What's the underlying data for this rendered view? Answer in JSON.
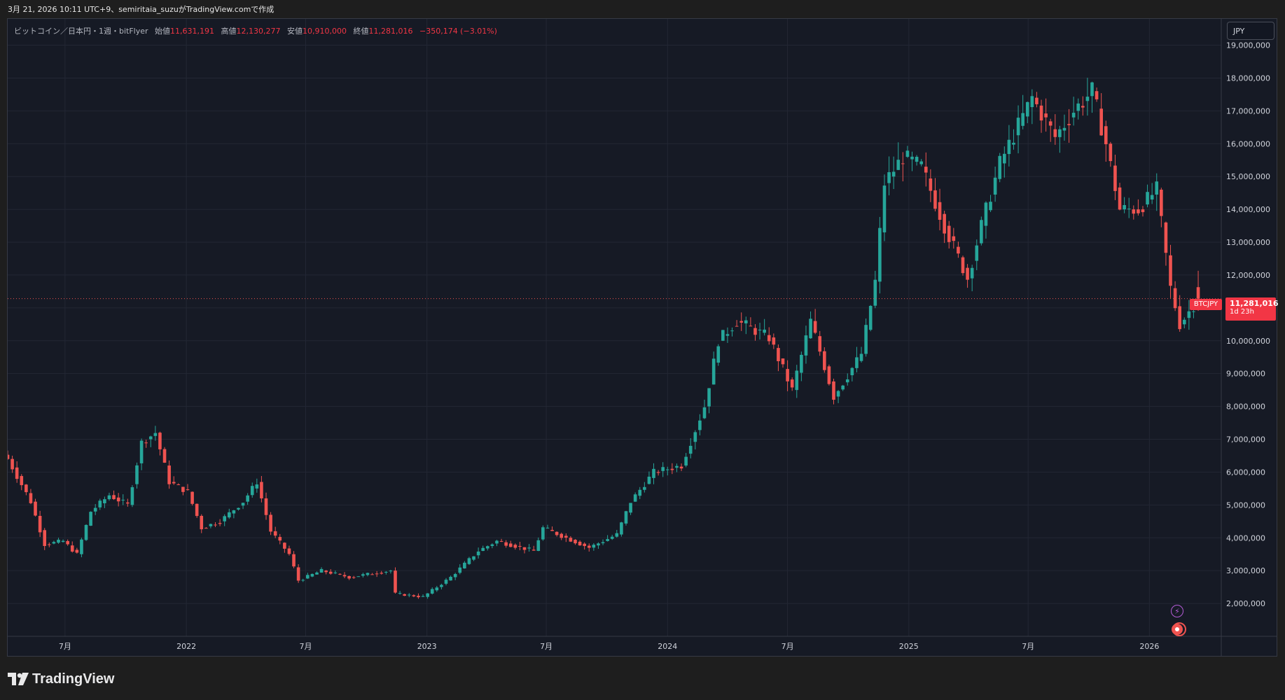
{
  "caption": "3月 21, 2026 10:11 UTC+9、semiritaia_suzuがTradingView.comで作成",
  "legend": {
    "symbol": "ビットコイン／日本円・1週・bitFlyer",
    "open_label": "始値",
    "open_value": "11,631,191",
    "high_label": "高値",
    "high_value": "12,130,277",
    "low_label": "安値",
    "low_value": "10,910,000",
    "close_label": "終値",
    "close_value": "11,281,016",
    "change": "−350,174 (−3.01%)"
  },
  "currency_button": "JPY",
  "price_tag": {
    "symbol": "BTCJPY",
    "price": "11,281,016",
    "countdown": "1d 23h"
  },
  "brand": "TradingView",
  "colors": {
    "up": "#26a69a",
    "down": "#ef5350",
    "background": "#161a25",
    "grid": "#232734",
    "label": "#d1d4dc"
  },
  "icons": [
    "bolt-icon",
    "target-icon",
    "tradingview-logo-icon"
  ],
  "chart_data": {
    "type": "candlestick",
    "interval": "1W",
    "x_range": [
      "2021-04-05",
      "2026-04-20"
    ],
    "y_range": [
      1000000,
      19800000
    ],
    "y_ticks": [
      2000000,
      3000000,
      4000000,
      5000000,
      6000000,
      7000000,
      8000000,
      9000000,
      10000000,
      11000000,
      12000000,
      13000000,
      14000000,
      15000000,
      16000000,
      17000000,
      18000000,
      19000000
    ],
    "y_tick_labels": [
      "2,000,000",
      "3,000,000",
      "4,000,000",
      "5,000,000",
      "6,000,000",
      "7,000,000",
      "8,000,000",
      "9,000,000",
      "10,000,000",
      "11,000,000",
      "12,000,000",
      "13,000,000",
      "14,000,000",
      "15,000,000",
      "16,000,000",
      "17,000,000",
      "18,000,000",
      "19,000,000"
    ],
    "x_ticks": [
      {
        "date": "2021-07-01",
        "label": "7月"
      },
      {
        "date": "2022-01-01",
        "label": "2022"
      },
      {
        "date": "2022-07-01",
        "label": "7月"
      },
      {
        "date": "2023-01-01",
        "label": "2023"
      },
      {
        "date": "2023-07-01",
        "label": "7月"
      },
      {
        "date": "2024-01-01",
        "label": "2024"
      },
      {
        "date": "2024-07-01",
        "label": "7月"
      },
      {
        "date": "2025-01-01",
        "label": "2025"
      },
      {
        "date": "2025-07-01",
        "label": "7月"
      },
      {
        "date": "2026-01-01",
        "label": "2026"
      }
    ],
    "last_price": 11281016,
    "weekly_closes": [
      [
        "2021-04-05",
        6400000
      ],
      [
        "2021-05-10",
        5100000
      ],
      [
        "2021-05-31",
        3800000
      ],
      [
        "2021-06-28",
        3900000
      ],
      [
        "2021-07-19",
        3500000
      ],
      [
        "2021-08-09",
        4800000
      ],
      [
        "2021-09-06",
        5300000
      ],
      [
        "2021-10-04",
        5000000
      ],
      [
        "2021-10-25",
        6900000
      ],
      [
        "2021-11-15",
        7200000
      ],
      [
        "2021-12-06",
        5700000
      ],
      [
        "2022-01-03",
        5400000
      ],
      [
        "2022-01-24",
        4300000
      ],
      [
        "2022-02-21",
        4500000
      ],
      [
        "2022-03-28",
        5100000
      ],
      [
        "2022-04-18",
        5700000
      ],
      [
        "2022-05-09",
        4200000
      ],
      [
        "2022-06-06",
        3500000
      ],
      [
        "2022-06-20",
        2700000
      ],
      [
        "2022-07-25",
        3000000
      ],
      [
        "2022-09-05",
        2800000
      ],
      [
        "2022-11-07",
        3000000
      ],
      [
        "2022-11-14",
        2300000
      ],
      [
        "2022-12-26",
        2200000
      ],
      [
        "2023-02-06",
        2800000
      ],
      [
        "2023-03-20",
        3600000
      ],
      [
        "2023-04-17",
        3900000
      ],
      [
        "2023-06-12",
        3600000
      ],
      [
        "2023-06-26",
        4300000
      ],
      [
        "2023-09-04",
        3700000
      ],
      [
        "2023-10-16",
        4100000
      ],
      [
        "2023-11-06",
        5100000
      ],
      [
        "2023-12-11",
        6000000
      ],
      [
        "2024-01-22",
        6200000
      ],
      [
        "2024-02-26",
        8000000
      ],
      [
        "2024-03-18",
        10000000
      ],
      [
        "2024-04-15",
        10600000
      ],
      [
        "2024-06-03",
        10100000
      ],
      [
        "2024-07-08",
        8500000
      ],
      [
        "2024-08-05",
        10600000
      ],
      [
        "2024-09-09",
        8300000
      ],
      [
        "2024-10-21",
        9600000
      ],
      [
        "2024-11-11",
        11800000
      ],
      [
        "2024-11-25",
        14800000
      ],
      [
        "2024-12-23",
        15600000
      ],
      [
        "2025-01-20",
        15300000
      ],
      [
        "2025-02-24",
        13500000
      ],
      [
        "2025-03-31",
        11900000
      ],
      [
        "2025-04-21",
        13500000
      ],
      [
        "2025-05-19",
        15400000
      ],
      [
        "2025-07-07",
        17400000
      ],
      [
        "2025-08-11",
        16200000
      ],
      [
        "2025-09-08",
        17000000
      ],
      [
        "2025-10-06",
        17600000
      ],
      [
        "2025-10-27",
        16000000
      ],
      [
        "2025-11-17",
        14000000
      ],
      [
        "2025-12-15",
        14000000
      ],
      [
        "2026-01-12",
        14600000
      ],
      [
        "2026-02-02",
        11600000
      ],
      [
        "2026-02-16",
        10500000
      ],
      [
        "2026-03-16",
        11281016
      ]
    ]
  }
}
